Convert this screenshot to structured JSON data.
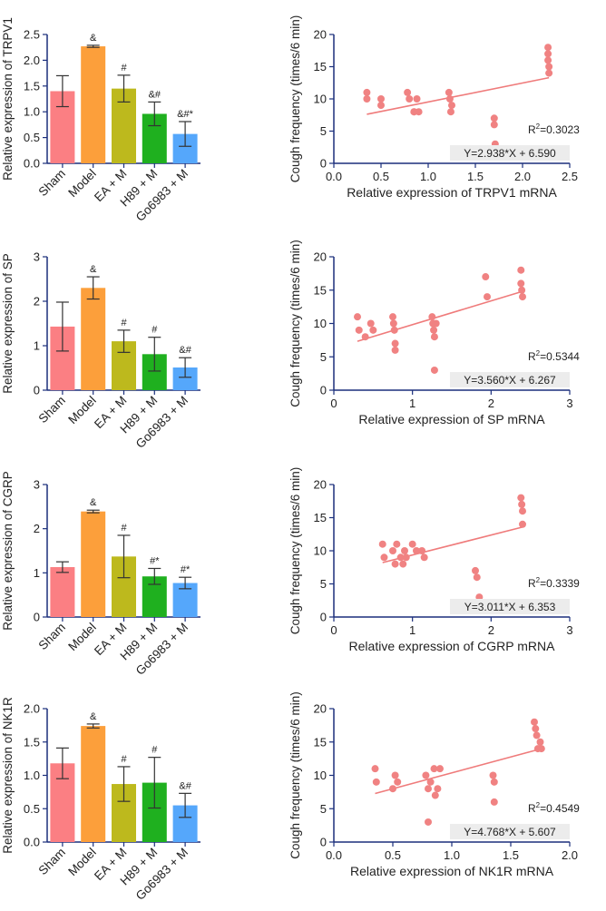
{
  "figure": {
    "layout": "4 rows x 2 columns (bar chart left, scatter with regression right)"
  },
  "chart_data": [
    {
      "type": "bar",
      "ylabel": "Relative expression of TRPV1",
      "ylim": [
        0,
        2.5
      ],
      "yticks": [
        "0.0",
        "0.5",
        "1.0",
        "1.5",
        "2.0",
        "2.5"
      ],
      "categories": [
        "Sham",
        "Model",
        "EA + M",
        "H89 + M",
        "Go6983 + M"
      ],
      "values": [
        1.4,
        2.27,
        1.45,
        0.96,
        0.57
      ],
      "errors": [
        0.3,
        0.02,
        0.26,
        0.23,
        0.24
      ],
      "annotations": [
        "",
        "&",
        "#",
        "&#",
        "&#*"
      ]
    },
    {
      "type": "scatter",
      "xlabel": "Relative expression of TRPV1 mRNA",
      "ylabel": "Cough frequency (times/6 min)",
      "xlim": [
        0,
        2.5
      ],
      "ylim": [
        0,
        20
      ],
      "xticks": [
        "0.0",
        "0.5",
        "1.0",
        "1.5",
        "2.0",
        "2.5"
      ],
      "yticks": [
        "0",
        "5",
        "10",
        "15",
        "20"
      ],
      "x": [
        0.35,
        0.35,
        0.5,
        0.5,
        0.78,
        0.8,
        0.85,
        0.85,
        0.88,
        0.9,
        1.22,
        1.23,
        1.24,
        1.25,
        1.7,
        1.7,
        1.71,
        2.27,
        2.27,
        2.27,
        2.28,
        2.28
      ],
      "y": [
        11,
        10,
        10,
        9,
        11,
        10,
        8,
        8,
        10,
        8,
        11,
        10,
        8,
        9,
        7,
        6,
        3,
        18,
        17,
        16,
        15,
        14
      ],
      "fit": {
        "slope": 2.938,
        "intercept": 6.59,
        "x_range": [
          0.35,
          2.28
        ]
      },
      "r2_label": "R",
      "r2_sup": "2",
      "r2_value": "=0.3023",
      "equation": "Y=2.938*X + 6.590"
    },
    {
      "type": "bar",
      "ylabel": "Relative expression of SP",
      "ylim": [
        0,
        3
      ],
      "yticks": [
        "0",
        "1",
        "2",
        "3"
      ],
      "categories": [
        "Sham",
        "Model",
        "EA + M",
        "H89 + M",
        "Go6983 + M"
      ],
      "values": [
        1.43,
        2.3,
        1.1,
        0.81,
        0.51
      ],
      "errors": [
        0.55,
        0.25,
        0.25,
        0.38,
        0.22
      ],
      "annotations": [
        "",
        "&",
        "#",
        "#",
        "&#"
      ]
    },
    {
      "type": "scatter",
      "xlabel": "Relative expression of SP mRNA",
      "ylabel": "Cough frequency (times/6 min)",
      "xlim": [
        0,
        3
      ],
      "ylim": [
        0,
        20
      ],
      "xticks": [
        "0",
        "1",
        "2",
        "3"
      ],
      "yticks": [
        "0",
        "5",
        "10",
        "15",
        "20"
      ],
      "x": [
        0.3,
        0.32,
        0.4,
        0.47,
        0.5,
        0.75,
        0.76,
        0.77,
        0.78,
        0.78,
        1.25,
        1.26,
        1.27,
        1.28,
        1.28,
        1.3,
        1.93,
        1.95,
        2.38,
        2.38,
        2.39,
        2.4
      ],
      "y": [
        11,
        9,
        8,
        10,
        9,
        11,
        10,
        9,
        7,
        6,
        11,
        10,
        9,
        8,
        3,
        10,
        17,
        14,
        18,
        16,
        15,
        14
      ],
      "fit": {
        "slope": 3.56,
        "intercept": 6.267,
        "x_range": [
          0.3,
          2.4
        ]
      },
      "r2_label": "R",
      "r2_sup": "2",
      "r2_value": "=0.5344",
      "equation": "Y=3.560*X + 6.267"
    },
    {
      "type": "bar",
      "ylabel": "Relative expression of CGRP",
      "ylim": [
        0,
        3
      ],
      "yticks": [
        "0",
        "1",
        "2",
        "3"
      ],
      "categories": [
        "Sham",
        "Model",
        "EA + M",
        "H89 + M",
        "Go6983 + M"
      ],
      "values": [
        1.13,
        2.39,
        1.37,
        0.92,
        0.77
      ],
      "errors": [
        0.12,
        0.03,
        0.48,
        0.18,
        0.13
      ],
      "annotations": [
        "",
        "&",
        "#",
        "#*",
        "#*"
      ]
    },
    {
      "type": "scatter",
      "xlabel": "Relative expression of CGRP mRNA",
      "ylabel": "Cough frequency (times/6 min)",
      "xlim": [
        0,
        3
      ],
      "ylim": [
        0,
        20
      ],
      "xticks": [
        "0",
        "1",
        "2",
        "3"
      ],
      "yticks": [
        "0",
        "5",
        "10",
        "15",
        "20"
      ],
      "x": [
        0.62,
        0.64,
        0.75,
        0.78,
        0.8,
        0.85,
        0.88,
        0.9,
        0.92,
        1.0,
        1.05,
        1.12,
        1.15,
        1.8,
        1.82,
        1.85,
        2.38,
        2.39,
        2.4,
        2.4
      ],
      "y": [
        11,
        9,
        10,
        8,
        11,
        9,
        8,
        10,
        9,
        11,
        10,
        10,
        9,
        7,
        6,
        3,
        18,
        17,
        16,
        14
      ],
      "fit": {
        "slope": 3.011,
        "intercept": 6.353,
        "x_range": [
          0.62,
          2.4
        ]
      },
      "r2_label": "R",
      "r2_sup": "2",
      "r2_value": "=0.3339",
      "equation": "Y=3.011*X + 6.353"
    },
    {
      "type": "bar",
      "ylabel": "Relative expression of NK1R",
      "ylim": [
        0,
        2.0
      ],
      "yticks": [
        "0.0",
        "0.5",
        "1.0",
        "1.5",
        "2.0"
      ],
      "categories": [
        "Sham",
        "Model",
        "EA + M",
        "H89 + M",
        "Go6983 + M"
      ],
      "values": [
        1.18,
        1.74,
        0.87,
        0.89,
        0.55
      ],
      "errors": [
        0.23,
        0.03,
        0.26,
        0.38,
        0.18
      ],
      "annotations": [
        "",
        "&",
        "#",
        "#",
        "&#"
      ]
    },
    {
      "type": "scatter",
      "xlabel": "Relative expression of NK1R mRNA",
      "ylabel": "Cough frequency (times/6 min)",
      "xlim": [
        0,
        2.0
      ],
      "ylim": [
        0,
        20
      ],
      "xticks": [
        "0.0",
        "0.5",
        "1.0",
        "1.5",
        "2.0"
      ],
      "yticks": [
        "0",
        "5",
        "10",
        "15",
        "20"
      ],
      "x": [
        0.35,
        0.36,
        0.5,
        0.52,
        0.54,
        0.78,
        0.8,
        0.8,
        0.82,
        0.85,
        0.86,
        0.88,
        0.9,
        1.35,
        1.36,
        1.36,
        1.7,
        1.71,
        1.72,
        1.73,
        1.75,
        1.76
      ],
      "y": [
        11,
        9,
        8,
        10,
        9,
        10,
        8,
        3,
        9,
        11,
        7,
        8,
        11,
        10,
        9,
        6,
        18,
        17,
        16,
        14,
        15,
        14
      ],
      "fit": {
        "slope": 4.768,
        "intercept": 5.607,
        "x_range": [
          0.35,
          1.76
        ]
      },
      "r2_label": "R",
      "r2_sup": "2",
      "r2_value": "=0.4549",
      "equation": "Y=4.768*X + 5.607"
    }
  ]
}
